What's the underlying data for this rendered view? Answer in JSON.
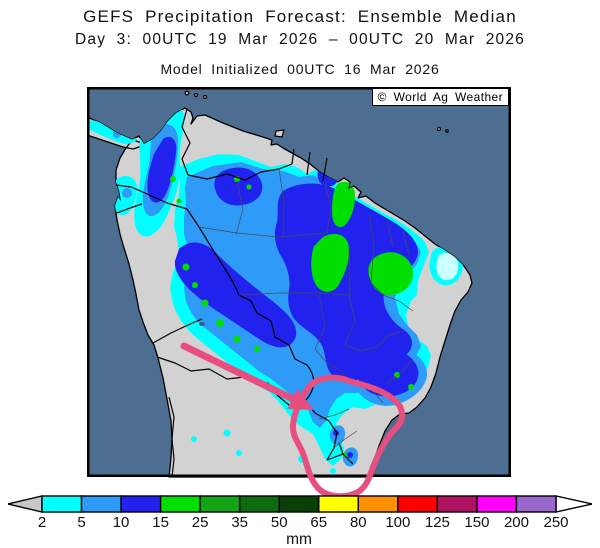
{
  "header": {
    "title": "GEFS Precipitation Forecast: Ensemble Median",
    "subtitle": "Day 3: 00UTC 19 Mar 2026 – 00UTC 20 Mar 2026",
    "init_line": "Model Initialized 00UTC 16 Mar 2026"
  },
  "map": {
    "copyright": "© World Ag Weather"
  },
  "palette": {
    "ocean": "#4D6E90",
    "land": "#D2D2D2",
    "cyan": "#00FFFF",
    "pale_cyan": "#CCFFFF",
    "light_blue": "#2F9BF8",
    "dark_blue": "#2222EE",
    "green": "#00DF00",
    "annotation_pink": "#E84F80",
    "border": "#000000",
    "state_border": "#4A4A4A"
  },
  "legend": {
    "unit": "mm",
    "ticks": [
      "2",
      "5",
      "10",
      "15",
      "25",
      "35",
      "50",
      "65",
      "80",
      "100",
      "125",
      "150",
      "200",
      "250"
    ],
    "colors": [
      "#00FFFF",
      "#2F9BF8",
      "#2222EE",
      "#00DF00",
      "#12A412",
      "#0E6B0E",
      "#084008",
      "#FFFF00",
      "#FF9000",
      "#FF0000",
      "#B01161",
      "#FF00FF",
      "#9966CC"
    ],
    "arrow_left_color": "#C8C8C8",
    "arrow_right_color": "#FFFFFF"
  }
}
